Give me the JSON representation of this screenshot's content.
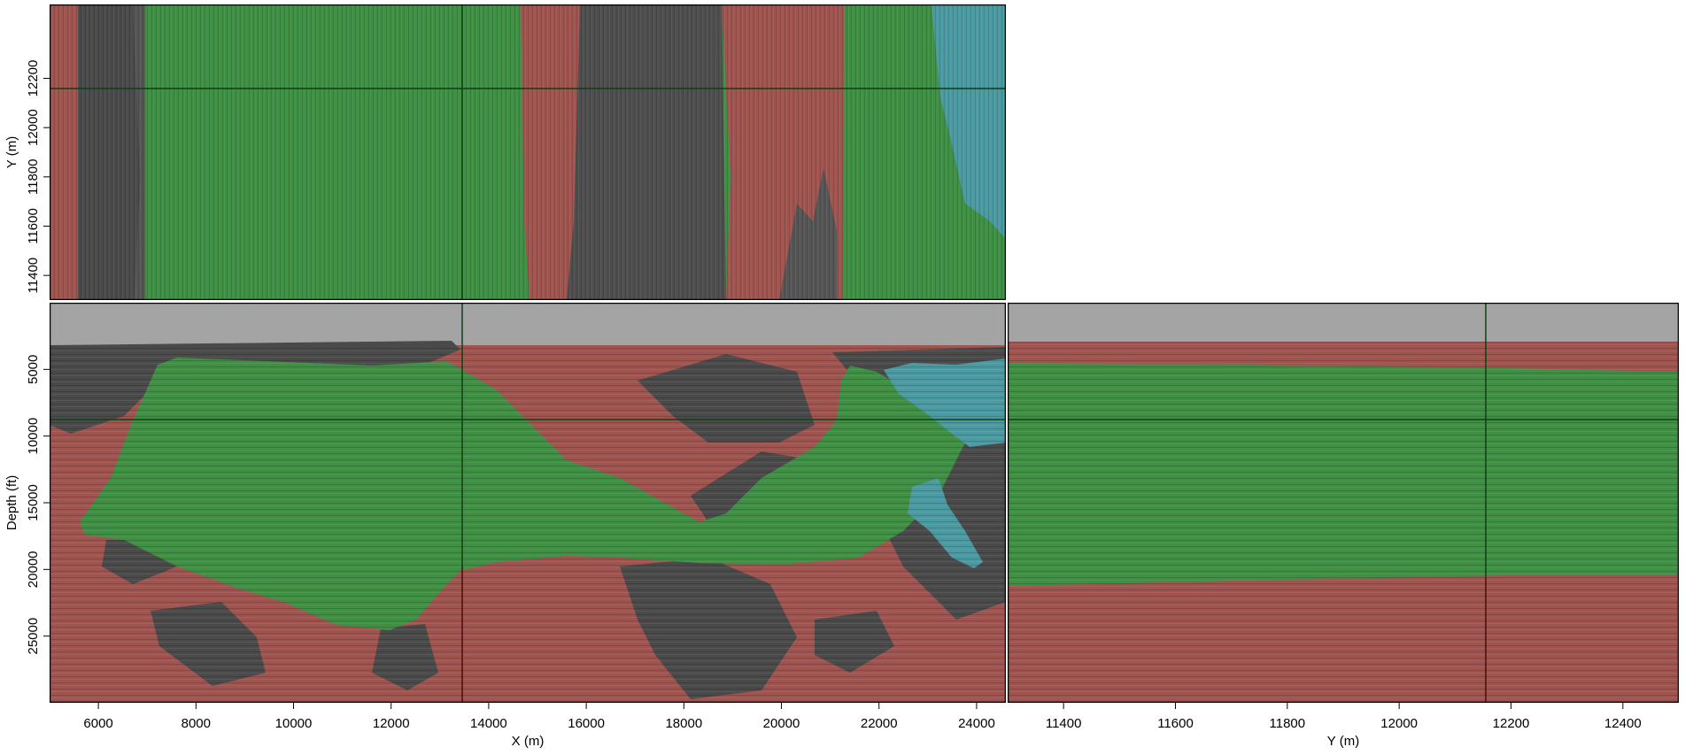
{
  "figure": {
    "type": "seismic-3d-slice-viewer",
    "panels": {
      "depth_slice": {
        "view": "X-Y",
        "y_axis_label": "Y (m)",
        "y_ticks": [
          "11400",
          "11600",
          "11800",
          "12000",
          "12200"
        ]
      },
      "inline": {
        "view": "X-Depth",
        "x_axis_label": "X (m)",
        "y_axis_label": "Depth (ft)",
        "x_ticks": [
          "6000",
          "8000",
          "10000",
          "12000",
          "14000",
          "16000",
          "18000",
          "20000",
          "22000",
          "24000"
        ],
        "y_ticks": [
          "5000",
          "10000",
          "15000",
          "20000",
          "25000"
        ]
      },
      "crossline": {
        "view": "Y-Depth",
        "x_axis_label": "Y (m)",
        "x_ticks": [
          "11400",
          "11600",
          "11800",
          "12000",
          "12200",
          "12400"
        ]
      }
    },
    "crosshair": {
      "x_m": 13500,
      "y_m": 12150,
      "depth_ft": 9000
    },
    "axis_ranges": {
      "x": [
        5000,
        24600
      ],
      "y": [
        11300,
        12500
      ],
      "depth": [
        0,
        30000
      ]
    },
    "colors": {
      "water": "#a4a4a4",
      "green_facies": "#3f8f44",
      "red_facies": "#a05450",
      "gray_facies": "#4a4a4a",
      "cyan_facies": "#4b9aa2",
      "crosshair_dark_green": "#0f3f14",
      "crosshair_dark_red": "#4a0c0c",
      "frame": "#000000"
    }
  }
}
